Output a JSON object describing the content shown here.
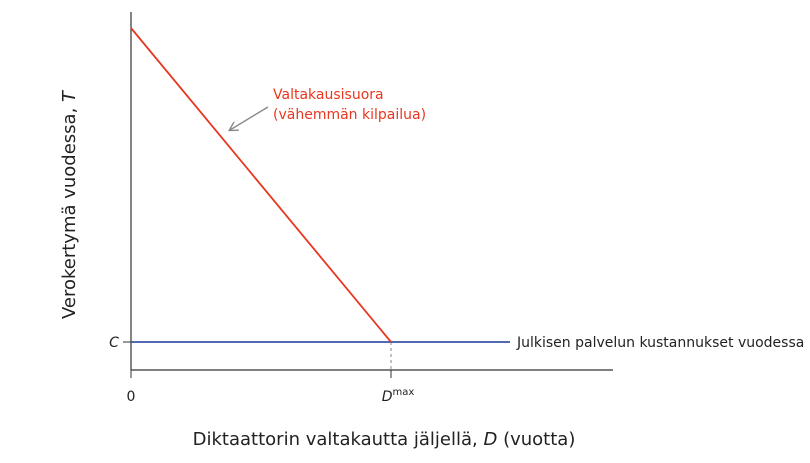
{
  "axes": {
    "y_label": {
      "text": "Verokertymä vuodessa, ",
      "variable": "T"
    },
    "x_label": {
      "text": "Diktaattorin valtakautta jäljellä, ",
      "variable": "D",
      "unit": " (vuotta)"
    },
    "x_origin": "0",
    "x_dmax": {
      "base": "D",
      "sup": "max"
    },
    "y_c": "C"
  },
  "lines": {
    "red": {
      "label_line1": "Valtakausisuora",
      "label_line2": "(vähemmän kilpailua)"
    },
    "blue": {
      "label": "Julkisen palvelun kustannukset vuodessa"
    }
  }
}
